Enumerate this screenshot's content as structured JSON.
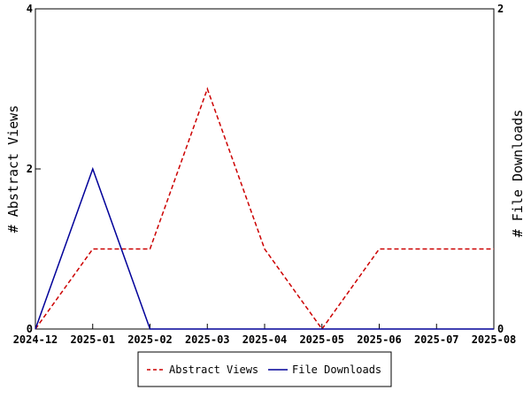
{
  "chart_data": {
    "type": "line",
    "x": [
      "2024-12",
      "2025-01",
      "2025-02",
      "2025-03",
      "2025-04",
      "2025-05",
      "2025-06",
      "2025-07",
      "2025-08"
    ],
    "series": [
      {
        "name": "Abstract Views",
        "axis": "left",
        "color": "#cc0000",
        "style": "dashed",
        "values": [
          0,
          1,
          1,
          3,
          1,
          0,
          1,
          1,
          1
        ]
      },
      {
        "name": "File Downloads",
        "axis": "right",
        "color": "#000099",
        "style": "solid",
        "values": [
          0,
          1,
          0,
          0,
          0,
          0,
          0,
          0,
          0
        ]
      }
    ],
    "title": "",
    "xlabel": "",
    "ylabel": "# Abstract Views",
    "y2label": "# File Downloads",
    "ylim": [
      0,
      4
    ],
    "y2lim": [
      0,
      2
    ],
    "yticks": [
      "0",
      "2",
      "4"
    ],
    "y2ticks": [
      "0",
      "2"
    ],
    "grid": false,
    "legend_position": "bottom"
  }
}
